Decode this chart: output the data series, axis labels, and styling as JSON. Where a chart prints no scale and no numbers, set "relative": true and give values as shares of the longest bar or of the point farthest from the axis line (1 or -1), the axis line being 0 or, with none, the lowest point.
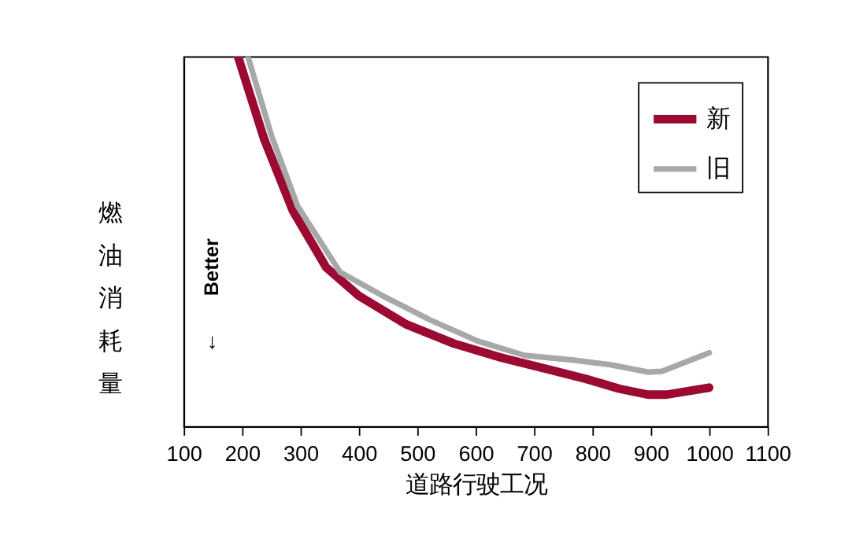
{
  "chart_data": {
    "type": "line",
    "xlabel": "道路行驶工况",
    "ylabel": "燃油消耗量",
    "relative": true,
    "xlim": [
      100,
      1100
    ],
    "xticks": [
      100,
      200,
      300,
      400,
      500,
      600,
      700,
      800,
      900,
      1000,
      1100
    ],
    "legend": "top right",
    "grid": false,
    "annotations": [
      "Better",
      "↓"
    ],
    "series": [
      {
        "name": "新",
        "color": "#9b0a30",
        "x": [
          193,
          238,
          287,
          344,
          400,
          481,
          563,
          644,
          725,
          790,
          846,
          895,
          927,
          1000
        ],
        "values": [
          1.0,
          0.776,
          0.583,
          0.43,
          0.353,
          0.276,
          0.224,
          0.186,
          0.154,
          0.128,
          0.102,
          0.086,
          0.086,
          0.105
        ]
      },
      {
        "name": "旧",
        "color": "#a8a8a8",
        "x": [
          210,
          250,
          295,
          368,
          441,
          522,
          603,
          684,
          765,
          830,
          895,
          919,
          1000
        ],
        "values": [
          1.0,
          0.788,
          0.596,
          0.417,
          0.353,
          0.288,
          0.231,
          0.192,
          0.18,
          0.167,
          0.147,
          0.149,
          0.199
        ]
      }
    ]
  }
}
